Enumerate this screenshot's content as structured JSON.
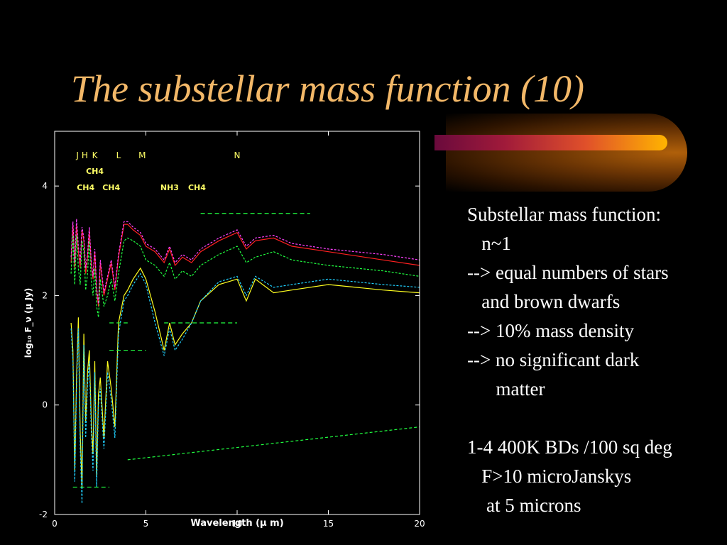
{
  "slide": {
    "title": "The substellar mass function (10)",
    "bullets": [
      "Substellar mass function:",
      "   n~1",
      "--> equal numbers of stars",
      "   and brown dwarfs",
      "--> 10% mass density",
      "--> no significant dark",
      "      matter",
      "",
      "1-4 400K BDs /100 sq deg",
      "   F>10 microJanskys",
      "    at 5 microns"
    ]
  },
  "chart_data": {
    "type": "line",
    "title": "",
    "xlabel": "Wavelength (μ m)",
    "ylabel": "log₁₀ F_ν (μ Jy)",
    "xlim": [
      0,
      20
    ],
    "ylim": [
      -2,
      5
    ],
    "xticks": [
      0,
      5,
      10,
      15,
      20
    ],
    "yticks": [
      -2,
      0,
      2,
      4
    ],
    "band_labels": [
      {
        "text": "J",
        "x": 1.25
      },
      {
        "text": "H",
        "x": 1.65
      },
      {
        "text": "K",
        "x": 2.2
      },
      {
        "text": "L",
        "x": 3.5
      },
      {
        "text": "M",
        "x": 4.8
      },
      {
        "text": "N",
        "x": 10.0
      }
    ],
    "molecule_labels": [
      {
        "text": "CH4",
        "x": 2.2,
        "row": 1
      },
      {
        "text": "CH4",
        "x": 1.7,
        "row": 2
      },
      {
        "text": "CH4",
        "x": 3.1,
        "row": 2
      },
      {
        "text": "NH3",
        "x": 6.3,
        "row": 2
      },
      {
        "text": "CH4",
        "x": 7.8,
        "row": 2
      }
    ],
    "colors": {
      "axis": "#ffffff",
      "label": "#ffff66"
    },
    "series": [
      {
        "color": "#ff2020",
        "dash": "",
        "x": [
          0.9,
          1.0,
          1.1,
          1.2,
          1.3,
          1.4,
          1.5,
          1.6,
          1.7,
          1.8,
          1.9,
          2.0,
          2.1,
          2.2,
          2.3,
          2.4,
          2.5,
          2.7,
          2.9,
          3.1,
          3.3,
          3.5,
          3.8,
          4.0,
          4.3,
          4.7,
          5.0,
          5.5,
          6.0,
          6.3,
          6.6,
          7.0,
          7.5,
          8.0,
          9.0,
          10.0,
          10.5,
          11.0,
          12.0,
          13.0,
          15.0,
          18.0,
          20.0
        ],
        "y": [
          2.6,
          3.3,
          2.5,
          3.3,
          2.8,
          2.5,
          3.2,
          3.0,
          2.4,
          2.7,
          3.2,
          2.6,
          2.3,
          2.8,
          2.1,
          1.8,
          2.6,
          2.0,
          2.3,
          2.6,
          2.1,
          2.7,
          3.3,
          3.3,
          3.2,
          3.1,
          2.9,
          2.8,
          2.6,
          2.85,
          2.55,
          2.7,
          2.6,
          2.8,
          3.0,
          3.15,
          2.85,
          3.0,
          3.05,
          2.9,
          2.8,
          2.65,
          2.55
        ]
      },
      {
        "color": "#ff40ff",
        "dash": "3,2",
        "x": [
          0.9,
          1.0,
          1.1,
          1.2,
          1.3,
          1.4,
          1.5,
          1.6,
          1.7,
          1.8,
          1.9,
          2.0,
          2.1,
          2.2,
          2.3,
          2.4,
          2.5,
          2.7,
          2.9,
          3.1,
          3.3,
          3.5,
          3.8,
          4.0,
          4.3,
          4.7,
          5.0,
          5.5,
          6.0,
          6.3,
          6.6,
          7.0,
          7.5,
          8.0,
          9.0,
          10.0,
          10.5,
          11.0,
          12.0,
          13.0,
          15.0,
          18.0,
          20.0
        ],
        "y": [
          2.7,
          3.35,
          2.6,
          3.4,
          2.9,
          2.6,
          3.25,
          3.05,
          2.5,
          2.75,
          3.25,
          2.65,
          2.35,
          2.85,
          2.15,
          1.85,
          2.65,
          2.05,
          2.35,
          2.65,
          2.15,
          2.75,
          3.35,
          3.35,
          3.25,
          3.15,
          2.95,
          2.85,
          2.65,
          2.9,
          2.6,
          2.75,
          2.65,
          2.85,
          3.05,
          3.2,
          2.9,
          3.05,
          3.1,
          2.95,
          2.85,
          2.75,
          2.65
        ]
      },
      {
        "color": "#20ff40",
        "dash": "3,2",
        "x": [
          0.9,
          1.0,
          1.1,
          1.2,
          1.3,
          1.4,
          1.5,
          1.6,
          1.7,
          1.8,
          1.9,
          2.0,
          2.1,
          2.2,
          2.3,
          2.4,
          2.5,
          2.7,
          2.9,
          3.1,
          3.3,
          3.5,
          3.8,
          4.0,
          4.3,
          4.7,
          5.0,
          5.5,
          6.0,
          6.3,
          6.6,
          7.0,
          7.5,
          8.0,
          9.0,
          10.0,
          10.5,
          11.0,
          12.0,
          13.0,
          15.0,
          18.0,
          20.0
        ],
        "y": [
          2.4,
          3.1,
          2.2,
          3.1,
          2.5,
          2.2,
          3.0,
          2.8,
          2.1,
          2.4,
          3.0,
          2.3,
          2.0,
          2.5,
          1.8,
          1.6,
          2.3,
          1.8,
          2.0,
          2.3,
          1.9,
          2.4,
          3.0,
          3.05,
          3.0,
          2.9,
          2.65,
          2.55,
          2.35,
          2.6,
          2.3,
          2.45,
          2.35,
          2.55,
          2.75,
          2.9,
          2.6,
          2.7,
          2.8,
          2.65,
          2.55,
          2.45,
          2.35
        ]
      },
      {
        "color": "#ffff20",
        "dash": "",
        "x": [
          0.9,
          1.0,
          1.1,
          1.2,
          1.3,
          1.4,
          1.5,
          1.6,
          1.7,
          1.8,
          1.9,
          2.0,
          2.1,
          2.2,
          2.3,
          2.4,
          2.5,
          2.7,
          2.9,
          3.1,
          3.3,
          3.5,
          3.8,
          4.0,
          4.3,
          4.7,
          5.0,
          5.5,
          6.0,
          6.3,
          6.6,
          7.0,
          7.5,
          8.0,
          9.0,
          10.0,
          10.5,
          11.0,
          12.0,
          13.0,
          15.0,
          18.0,
          20.0
        ],
        "y": [
          1.5,
          1.0,
          -1.2,
          0.5,
          1.6,
          -0.5,
          -1.5,
          1.3,
          -0.3,
          0.6,
          1.0,
          -0.2,
          -0.9,
          0.8,
          -1.3,
          0.2,
          0.5,
          -0.6,
          0.8,
          0.3,
          -0.4,
          1.5,
          2.0,
          2.1,
          2.3,
          2.5,
          2.3,
          1.7,
          1.0,
          1.5,
          1.1,
          1.3,
          1.5,
          1.9,
          2.2,
          2.3,
          1.9,
          2.3,
          2.05,
          2.1,
          2.2,
          2.1,
          2.05
        ]
      },
      {
        "color": "#20d0ff",
        "dash": "3,2",
        "x": [
          0.9,
          1.0,
          1.1,
          1.2,
          1.3,
          1.4,
          1.5,
          1.6,
          1.7,
          1.8,
          1.9,
          2.0,
          2.1,
          2.2,
          2.3,
          2.4,
          2.5,
          2.7,
          2.9,
          3.1,
          3.3,
          3.5,
          3.8,
          4.0,
          4.3,
          4.7,
          5.0,
          5.5,
          6.0,
          6.3,
          6.6,
          7.0,
          7.5,
          8.0,
          9.0,
          10.0,
          10.5,
          11.0,
          12.0,
          13.0,
          15.0,
          18.0,
          20.0
        ],
        "y": [
          1.4,
          0.8,
          -1.4,
          0.3,
          1.4,
          -0.8,
          -1.8,
          1.1,
          -0.6,
          0.4,
          0.8,
          -0.4,
          -1.2,
          0.6,
          -1.5,
          0.0,
          0.3,
          -0.8,
          0.6,
          0.1,
          -0.6,
          1.3,
          1.9,
          2.0,
          2.2,
          2.4,
          2.2,
          1.5,
          0.9,
          1.4,
          1.0,
          1.2,
          1.5,
          1.9,
          2.25,
          2.35,
          2.0,
          2.35,
          2.15,
          2.2,
          2.3,
          2.2,
          2.15
        ]
      },
      {
        "color": "#20ff40",
        "dash": "4,3",
        "x": [
          4.0,
          20.0
        ],
        "y": [
          -1.0,
          -0.4
        ]
      }
    ],
    "sensitivity_limits": [
      {
        "x": [
          8.0,
          14.0
        ],
        "y": 3.5
      },
      {
        "x": [
          6.0,
          10.0
        ],
        "y": 1.5
      },
      {
        "x": [
          3.0,
          4.0
        ],
        "y": 1.5
      },
      {
        "x": [
          3.0,
          5.0
        ],
        "y": 1.0
      },
      {
        "x": [
          1.0,
          3.0
        ],
        "y": -1.5
      }
    ]
  }
}
